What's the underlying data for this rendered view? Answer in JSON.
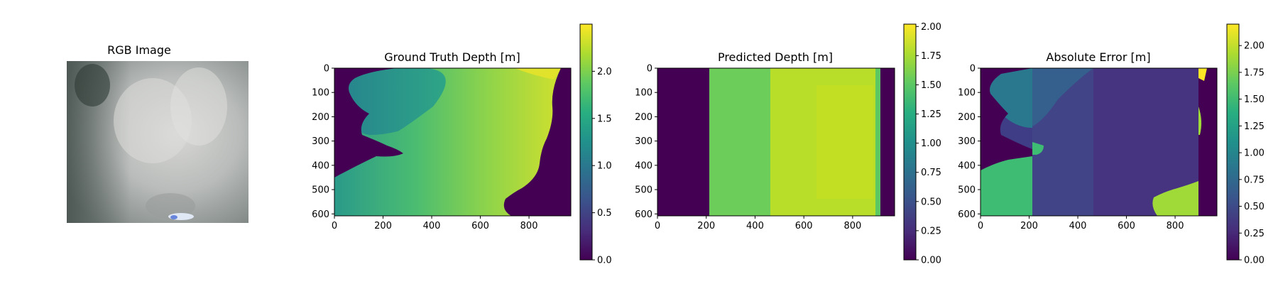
{
  "chart_data": [
    {
      "type": "image",
      "title": "RGB Image"
    },
    {
      "type": "heatmap",
      "title": "Ground Truth Depth [m]",
      "x_ticks": [
        "0",
        "200",
        "400",
        "600",
        "800"
      ],
      "y_ticks": [
        "0",
        "100",
        "200",
        "300",
        "400",
        "500",
        "600"
      ],
      "xlim": [
        0,
        972
      ],
      "ylim": [
        608,
        0
      ],
      "colormap": "viridis",
      "color_range": [
        0,
        2.5
      ],
      "colorbar_ticks": [
        {
          "value": 0.0,
          "label": "0.0"
        },
        {
          "value": 0.5,
          "label": "0.5"
        },
        {
          "value": 1.0,
          "label": "1.0"
        },
        {
          "value": 1.5,
          "label": "1.5"
        },
        {
          "value": 2.0,
          "label": "2.0"
        }
      ]
    },
    {
      "type": "heatmap",
      "title": "Predicted Depth [m]",
      "x_ticks": [
        "0",
        "200",
        "400",
        "600",
        "800"
      ],
      "y_ticks": [
        "0",
        "100",
        "200",
        "300",
        "400",
        "500",
        "600"
      ],
      "xlim": [
        0,
        972
      ],
      "ylim": [
        608,
        0
      ],
      "colormap": "viridis",
      "color_range": [
        0,
        2.02
      ],
      "colorbar_ticks": [
        {
          "value": 0.0,
          "label": "0.00"
        },
        {
          "value": 0.25,
          "label": "0.25"
        },
        {
          "value": 0.5,
          "label": "0.50"
        },
        {
          "value": 0.75,
          "label": "0.75"
        },
        {
          "value": 1.0,
          "label": "1.00"
        },
        {
          "value": 1.25,
          "label": "1.25"
        },
        {
          "value": 1.5,
          "label": "1.50"
        },
        {
          "value": 1.75,
          "label": "1.75"
        },
        {
          "value": 2.0,
          "label": "2.00"
        }
      ]
    },
    {
      "type": "heatmap",
      "title": "Absolute Error [m]",
      "x_ticks": [
        "0",
        "200",
        "400",
        "600",
        "800"
      ],
      "y_ticks": [
        "0",
        "100",
        "200",
        "300",
        "400",
        "500",
        "600"
      ],
      "xlim": [
        0,
        972
      ],
      "ylim": [
        608,
        0
      ],
      "colormap": "viridis",
      "color_range": [
        0,
        2.2
      ],
      "colorbar_ticks": [
        {
          "value": 0.0,
          "label": "0.00"
        },
        {
          "value": 0.25,
          "label": "0.25"
        },
        {
          "value": 0.5,
          "label": "0.50"
        },
        {
          "value": 0.75,
          "label": "0.75"
        },
        {
          "value": 1.0,
          "label": "1.00"
        },
        {
          "value": 1.25,
          "label": "1.25"
        },
        {
          "value": 1.5,
          "label": "1.50"
        },
        {
          "value": 1.75,
          "label": "1.75"
        },
        {
          "value": 2.0,
          "label": "2.00"
        }
      ]
    }
  ]
}
